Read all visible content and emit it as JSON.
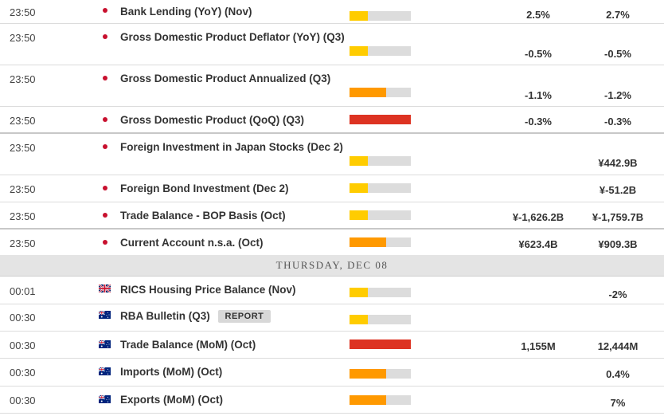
{
  "day_header": "THURSDAY, DEC 08",
  "report_label": "REPORT",
  "rows": [
    {
      "time": "23:50",
      "country": "jp",
      "event": "Bank Lending (YoY) (Nov)",
      "impact": "low",
      "actual": "2.5%",
      "forecast": "2.7%"
    },
    {
      "time": "23:50",
      "country": "jp",
      "event": "Gross Domestic Product Deflator (YoY) (Q3)",
      "impact": "low",
      "actual": "-0.5%",
      "forecast": "-0.5%"
    },
    {
      "time": "23:50",
      "country": "jp",
      "event": "Gross Domestic Product Annualized (Q3)",
      "impact": "medium",
      "actual": "-1.1%",
      "forecast": "-1.2%"
    },
    {
      "time": "23:50",
      "country": "jp",
      "event": "Gross Domestic Product (QoQ) (Q3)",
      "impact": "high",
      "actual": "-0.3%",
      "forecast": "-0.3%"
    },
    {
      "time": "23:50",
      "country": "jp",
      "event": "Foreign Investment in Japan Stocks (Dec 2)",
      "impact": "low",
      "actual": "",
      "forecast": "¥442.9B"
    },
    {
      "time": "23:50",
      "country": "jp",
      "event": "Foreign Bond Investment (Dec 2)",
      "impact": "low",
      "actual": "",
      "forecast": "¥-51.2B"
    },
    {
      "time": "23:50",
      "country": "jp",
      "event": "Trade Balance - BOP Basis (Oct)",
      "impact": "low",
      "actual": "¥-1,626.2B",
      "forecast": "¥-1,759.7B"
    },
    {
      "time": "23:50",
      "country": "jp",
      "event": "Current Account n.s.a. (Oct)",
      "impact": "medium",
      "actual": "¥623.4B",
      "forecast": "¥909.3B"
    },
    {
      "time": "00:01",
      "country": "gb",
      "event": "RICS Housing Price Balance (Nov)",
      "impact": "low",
      "actual": "",
      "forecast": "-2%"
    },
    {
      "time": "00:30",
      "country": "au",
      "event": "RBA Bulletin (Q3)",
      "impact": "low",
      "actual": "",
      "forecast": "",
      "has_report": true
    },
    {
      "time": "00:30",
      "country": "au",
      "event": "Trade Balance (MoM) (Oct)",
      "impact": "high",
      "actual": "1,155M",
      "forecast": "12,444M"
    },
    {
      "time": "00:30",
      "country": "au",
      "event": "Imports (MoM) (Oct)",
      "impact": "medium",
      "actual": "",
      "forecast": "0.4%"
    },
    {
      "time": "00:30",
      "country": "au",
      "event": "Exports (MoM) (Oct)",
      "impact": "medium",
      "actual": "",
      "forecast": "7%"
    }
  ],
  "colors": {
    "low": "#ffcc00",
    "medium": "#ff9900",
    "high": "#dd3322",
    "impact_bg": "#dcdcdc"
  }
}
